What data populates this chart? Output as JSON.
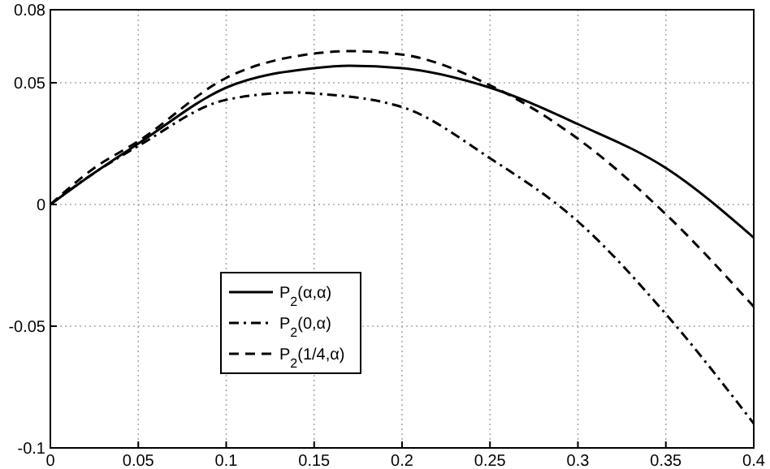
{
  "chart_data": {
    "type": "line",
    "x": [
      0,
      0.025,
      0.05,
      0.1,
      0.15,
      0.17,
      0.2,
      0.25,
      0.3,
      0.35,
      0.4
    ],
    "series": [
      {
        "name": "P$_{2}$(α,α)",
        "color": "#000000",
        "line_style": "solid",
        "values": [
          0,
          0.013,
          0.025,
          0.048,
          0.056,
          0.057,
          0.056,
          0.048,
          0.033,
          0.015,
          -0.0136
        ]
      },
      {
        "name": "P$_{2}$(0,α)",
        "color": "#000000",
        "line_style": "dashdot",
        "x": [
          0,
          0.025,
          0.05,
          0.1,
          0.14,
          0.15,
          0.2,
          0.25,
          0.3,
          0.35,
          0.4
        ],
        "values": [
          0,
          0.013,
          0.024,
          0.043,
          0.046,
          0.0456,
          0.04,
          0.019,
          -0.007,
          -0.045,
          -0.09
        ]
      },
      {
        "name": "P$_{2}$(1/4,α)",
        "color": "#000000",
        "line_style": "dashed",
        "values": [
          0,
          0.015,
          0.026,
          0.052,
          0.062,
          0.063,
          0.0616,
          0.049,
          0.027,
          -0.004,
          -0.042
        ]
      }
    ],
    "xlim": [
      0,
      0.4
    ],
    "xticks": [
      0,
      0.05,
      0.1,
      0.15,
      0.2,
      0.25,
      0.3,
      0.35,
      0.4
    ],
    "ylim": [
      -0.1,
      0.08
    ],
    "yticks": [
      -0.1,
      -0.05,
      0,
      0.05,
      0.08
    ],
    "grid": true,
    "legend": "center left",
    "marker": "none"
  }
}
